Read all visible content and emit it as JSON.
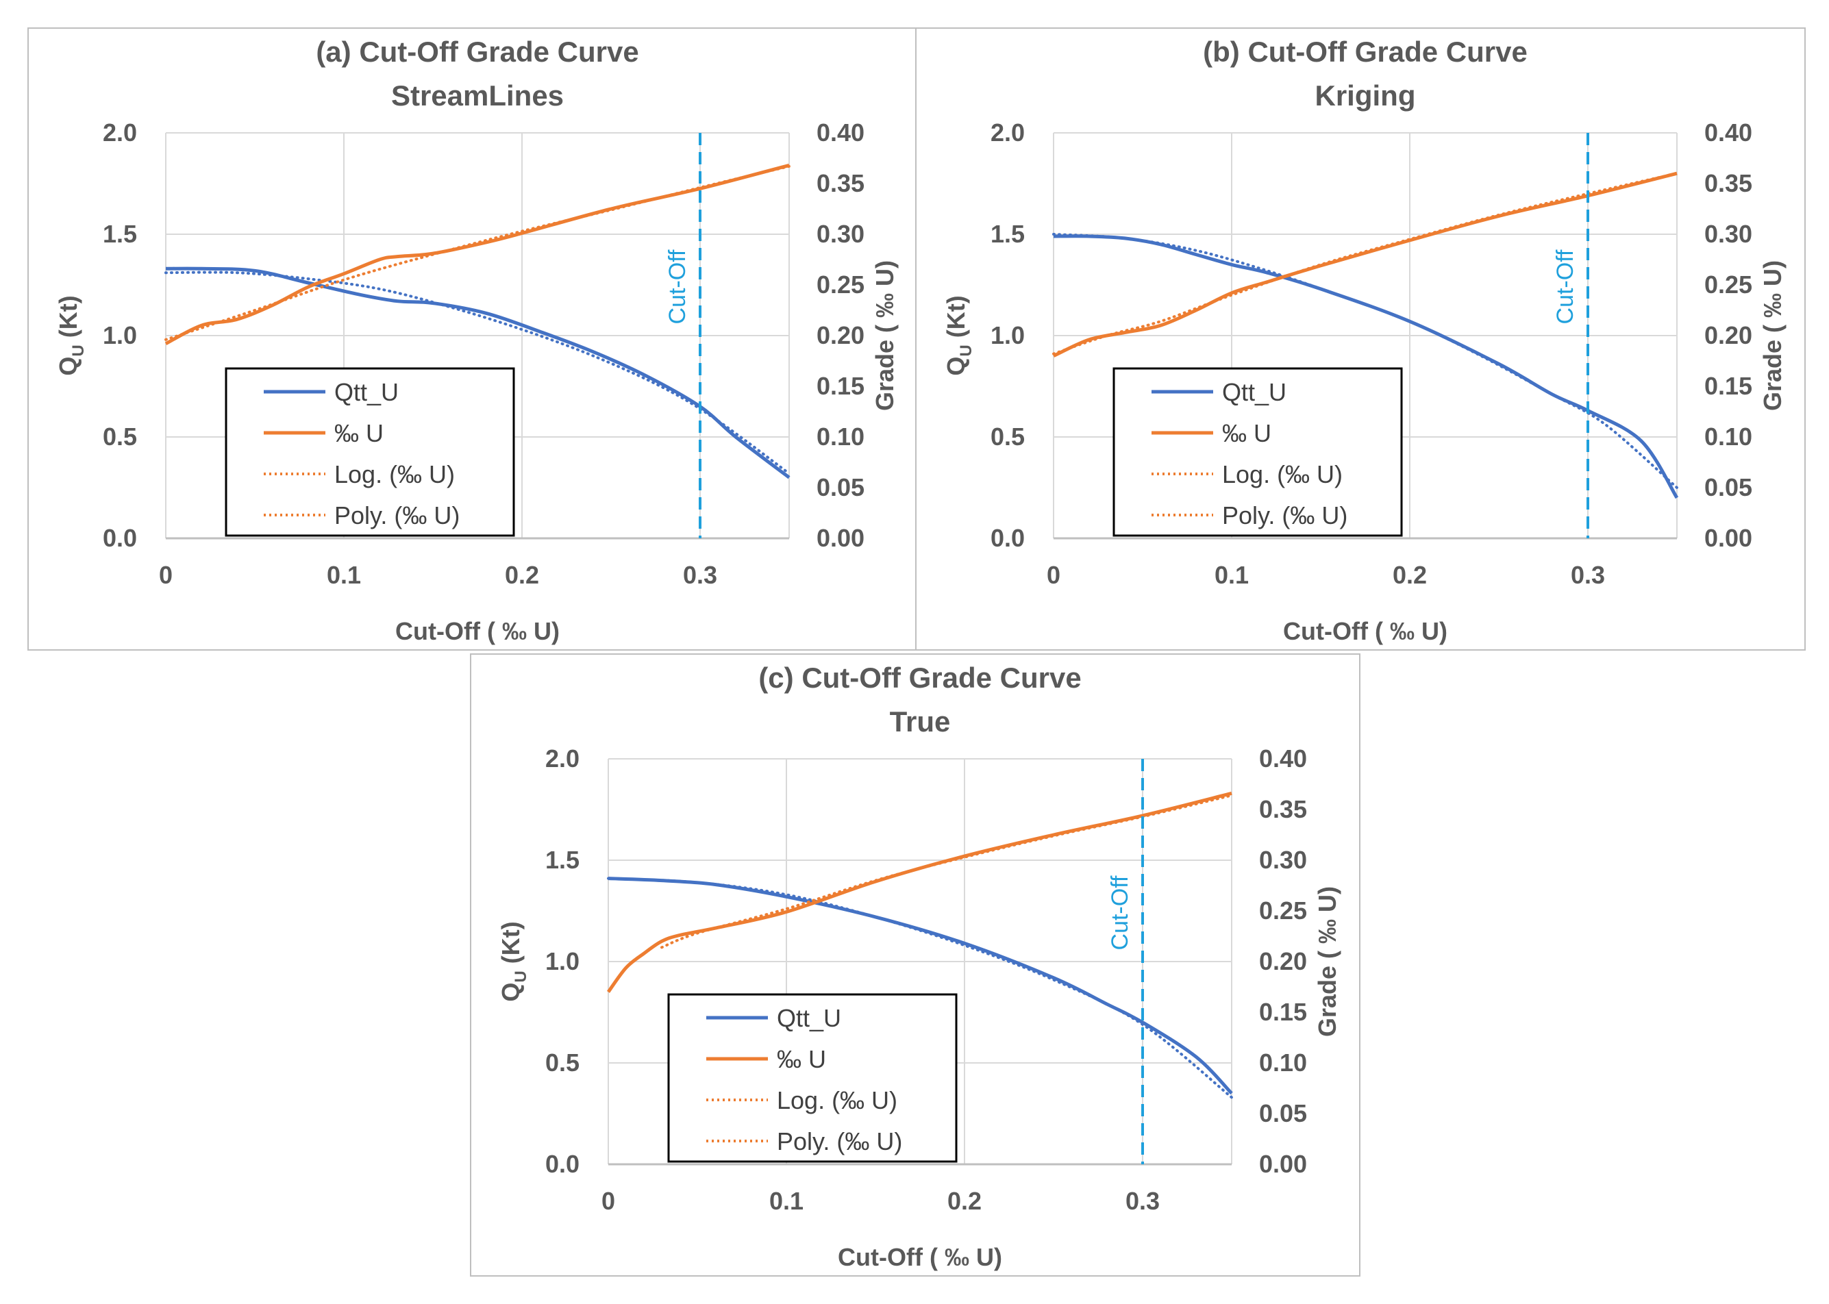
{
  "colors": {
    "qtt": "#4472c4",
    "grade": "#ed7d31",
    "cutoff": "#1fa0dc",
    "grid": "#d9d9d9",
    "axis": "#bfbfbf"
  },
  "chart_data": [
    {
      "id": "a",
      "type": "line",
      "title_line1": "(a) Cut-Off Grade Curve",
      "title_line2": "StreamLines",
      "xlabel": "Cut-Off ( ‰ U)",
      "ylabel_left_main": "Q",
      "ylabel_left_sub": "U",
      "ylabel_left_unit": " (Kt)",
      "ylabel_right": "Grade ( ‰ U)",
      "xlim": [
        0,
        0.35
      ],
      "xticks": [
        0,
        0.1,
        0.2,
        0.3
      ],
      "xtick_labels": [
        "0",
        "0.1",
        "0.2",
        "0.3"
      ],
      "ylim_left": [
        0,
        2.0
      ],
      "yticks_left": [
        "0.0",
        "0.5",
        "1.0",
        "1.5",
        "2.0"
      ],
      "ylim_right": [
        0,
        0.4
      ],
      "yticks_right": [
        "0.00",
        "0.05",
        "0.10",
        "0.15",
        "0.20",
        "0.25",
        "0.30",
        "0.35",
        "0.40"
      ],
      "cutoff_x": 0.3,
      "cutoff_label": "Cut-Off",
      "legend": [
        "Qtt_U",
        "‰ U",
        "Log. (‰ U)",
        "Poly. (‰ U)"
      ],
      "series": [
        {
          "name": "Qtt_U",
          "axis": "left",
          "style": "solid",
          "x": [
            0,
            0.02,
            0.05,
            0.08,
            0.11,
            0.13,
            0.15,
            0.18,
            0.21,
            0.24,
            0.27,
            0.3,
            0.32,
            0.35
          ],
          "y": [
            1.33,
            1.33,
            1.32,
            1.26,
            1.2,
            1.17,
            1.16,
            1.11,
            1.02,
            0.92,
            0.8,
            0.65,
            0.5,
            0.3
          ]
        },
        {
          "name": "Qtt_U trend",
          "axis": "left",
          "style": "dotted",
          "x": [
            0,
            0.04,
            0.08,
            0.12,
            0.16,
            0.2,
            0.24,
            0.28,
            0.31,
            0.35
          ],
          "y": [
            1.31,
            1.31,
            1.28,
            1.23,
            1.14,
            1.03,
            0.9,
            0.74,
            0.58,
            0.32
          ]
        },
        {
          "name": "‰ U",
          "axis": "right",
          "style": "solid",
          "x": [
            0,
            0.02,
            0.04,
            0.06,
            0.08,
            0.1,
            0.12,
            0.13,
            0.15,
            0.18,
            0.2,
            0.25,
            0.3,
            0.35
          ],
          "y": [
            0.192,
            0.21,
            0.216,
            0.23,
            0.248,
            0.261,
            0.275,
            0.278,
            0.281,
            0.292,
            0.301,
            0.325,
            0.345,
            0.368
          ]
        },
        {
          "name": "Poly. (‰ U)",
          "axis": "right",
          "style": "dotted",
          "x": [
            0,
            0.05,
            0.1,
            0.15,
            0.2,
            0.25,
            0.3,
            0.35
          ],
          "y": [
            0.196,
            0.225,
            0.255,
            0.28,
            0.303,
            0.324,
            0.346,
            0.367
          ]
        }
      ]
    },
    {
      "id": "b",
      "type": "line",
      "title_line1": "(b) Cut-Off Grade Curve",
      "title_line2": "Kriging",
      "xlabel": "Cut-Off ( ‰ U)",
      "ylabel_left_main": "Q",
      "ylabel_left_sub": "U",
      "ylabel_left_unit": " (Kt)",
      "ylabel_right": "Grade ( ‰ U)",
      "xlim": [
        0,
        0.35
      ],
      "xticks": [
        0,
        0.1,
        0.2,
        0.3
      ],
      "xtick_labels": [
        "0",
        "0.1",
        "0.2",
        "0.3"
      ],
      "ylim_left": [
        0,
        2.0
      ],
      "yticks_left": [
        "0.0",
        "0.5",
        "1.0",
        "1.5",
        "2.0"
      ],
      "ylim_right": [
        0,
        0.4
      ],
      "yticks_right": [
        "0.00",
        "0.05",
        "0.10",
        "0.15",
        "0.20",
        "0.25",
        "0.30",
        "0.35",
        "0.40"
      ],
      "cutoff_x": 0.3,
      "cutoff_label": "Cut-Off",
      "legend": [
        "Qtt_U",
        "‰ U",
        "Log. (‰ U)",
        "Poly. (‰ U)"
      ],
      "series": [
        {
          "name": "Qtt_U",
          "axis": "left",
          "style": "solid",
          "x": [
            0,
            0.02,
            0.04,
            0.06,
            0.08,
            0.1,
            0.12,
            0.15,
            0.2,
            0.25,
            0.28,
            0.3,
            0.33,
            0.35
          ],
          "y": [
            1.49,
            1.49,
            1.48,
            1.45,
            1.4,
            1.35,
            1.31,
            1.23,
            1.07,
            0.86,
            0.71,
            0.63,
            0.48,
            0.2
          ]
        },
        {
          "name": "Qtt_U trend",
          "axis": "left",
          "style": "dotted",
          "x": [
            0,
            0.04,
            0.08,
            0.12,
            0.16,
            0.2,
            0.24,
            0.28,
            0.31,
            0.35
          ],
          "y": [
            1.5,
            1.48,
            1.42,
            1.32,
            1.2,
            1.07,
            0.9,
            0.71,
            0.56,
            0.25
          ]
        },
        {
          "name": "‰ U",
          "axis": "right",
          "style": "solid",
          "x": [
            0,
            0.02,
            0.04,
            0.06,
            0.08,
            0.1,
            0.12,
            0.15,
            0.2,
            0.25,
            0.3,
            0.35
          ],
          "y": [
            0.18,
            0.196,
            0.203,
            0.21,
            0.225,
            0.242,
            0.253,
            0.269,
            0.294,
            0.318,
            0.338,
            0.36
          ]
        },
        {
          "name": "Poly. (‰ U)",
          "axis": "right",
          "style": "dotted",
          "x": [
            0,
            0.03,
            0.06,
            0.1,
            0.15,
            0.2,
            0.25,
            0.3,
            0.35
          ],
          "y": [
            0.182,
            0.2,
            0.214,
            0.24,
            0.27,
            0.295,
            0.319,
            0.34,
            0.36
          ]
        }
      ]
    },
    {
      "id": "c",
      "type": "line",
      "title_line1": "(c) Cut-Off Grade Curve",
      "title_line2": "True",
      "xlabel": "Cut-Off ( ‰ U)",
      "ylabel_left_main": "Q",
      "ylabel_left_sub": "U",
      "ylabel_left_unit": " (Kt)",
      "ylabel_right": "Grade ( ‰ U)",
      "xlim": [
        0,
        0.35
      ],
      "xticks": [
        0,
        0.1,
        0.2,
        0.3
      ],
      "xtick_labels": [
        "0",
        "0.1",
        "0.2",
        "0.3"
      ],
      "ylim_left": [
        0,
        2.0
      ],
      "yticks_left": [
        "0.0",
        "0.5",
        "1.0",
        "1.5",
        "2.0"
      ],
      "ylim_right": [
        0,
        0.4
      ],
      "yticks_right": [
        "0.00",
        "0.05",
        "0.10",
        "0.15",
        "0.20",
        "0.25",
        "0.30",
        "0.35",
        "0.40"
      ],
      "cutoff_x": 0.3,
      "cutoff_label": "Cut-Off",
      "legend": [
        "Qtt_U",
        "‰ U",
        "Log. (‰ U)",
        "Poly. (‰ U)"
      ],
      "series": [
        {
          "name": "Qtt_U",
          "axis": "left",
          "style": "solid",
          "x": [
            0,
            0.03,
            0.06,
            0.1,
            0.15,
            0.2,
            0.25,
            0.28,
            0.3,
            0.33,
            0.35
          ],
          "y": [
            1.41,
            1.4,
            1.38,
            1.32,
            1.22,
            1.09,
            0.92,
            0.79,
            0.7,
            0.53,
            0.35
          ]
        },
        {
          "name": "Qtt_U trend",
          "axis": "left",
          "style": "dotted",
          "x": [
            0,
            0.05,
            0.1,
            0.15,
            0.2,
            0.25,
            0.3,
            0.35
          ],
          "y": [
            1.41,
            1.39,
            1.33,
            1.22,
            1.08,
            0.91,
            0.69,
            0.33
          ]
        },
        {
          "name": "‰ U",
          "axis": "right",
          "style": "solid",
          "x": [
            0,
            0.01,
            0.02,
            0.03,
            0.04,
            0.06,
            0.1,
            0.15,
            0.2,
            0.25,
            0.3,
            0.35
          ],
          "y": [
            0.17,
            0.194,
            0.208,
            0.22,
            0.226,
            0.233,
            0.249,
            0.279,
            0.304,
            0.325,
            0.344,
            0.366
          ]
        },
        {
          "name": "Poly. (‰ U)",
          "axis": "right",
          "style": "dotted",
          "x": [
            0.03,
            0.05,
            0.1,
            0.15,
            0.2,
            0.25,
            0.3,
            0.35
          ],
          "y": [
            0.214,
            0.228,
            0.252,
            0.28,
            0.303,
            0.324,
            0.343,
            0.364
          ]
        }
      ]
    }
  ]
}
